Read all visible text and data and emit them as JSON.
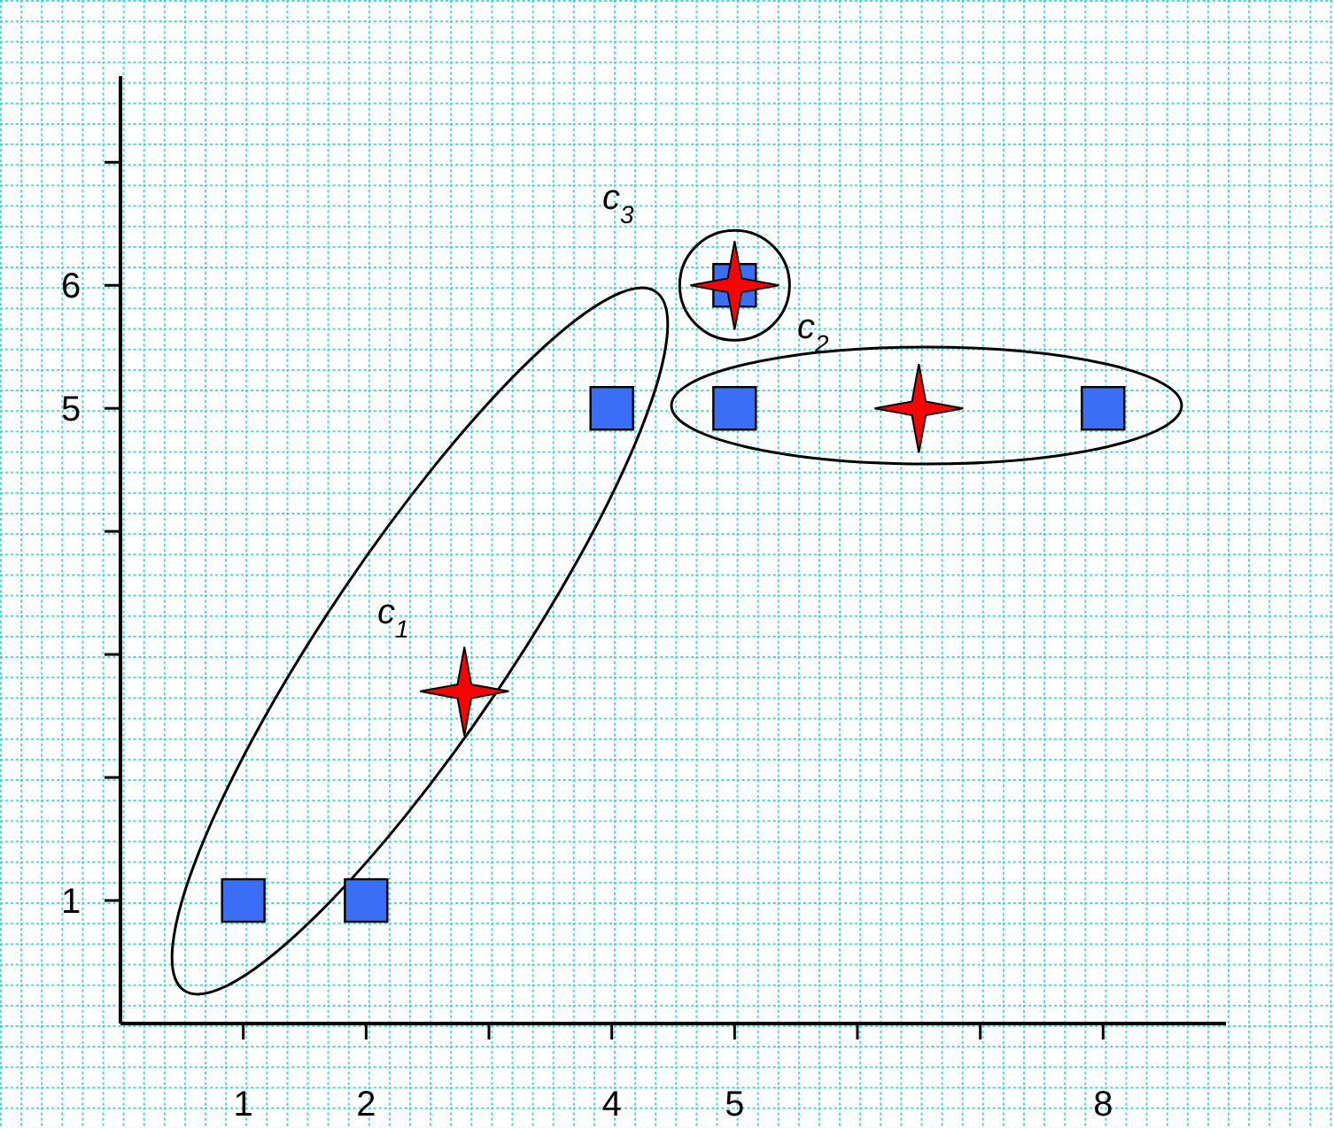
{
  "chart_data": {
    "type": "scatter",
    "xlim": [
      0,
      9
    ],
    "ylim": [
      0,
      7.7
    ],
    "xticks": [
      1,
      2,
      {
        "value": 3,
        "label": null
      },
      4,
      5,
      {
        "value": 6,
        "label": null
      },
      {
        "value": 7,
        "label": null
      },
      8
    ],
    "yticks": [
      1,
      {
        "value": 2,
        "label": null
      },
      {
        "value": 3,
        "label": null
      },
      {
        "value": 4,
        "label": null
      },
      5,
      6,
      {
        "value": 7,
        "label": null
      }
    ],
    "grid": false,
    "series": [
      {
        "marker": "square",
        "color": "#3b6ef6",
        "x": [
          1,
          2,
          4,
          5,
          8,
          5
        ],
        "values": [
          1,
          1,
          5,
          5,
          5,
          6
        ]
      },
      {
        "marker": "star",
        "color": "#ff0000",
        "x": [
          2.8,
          6.5,
          5
        ],
        "values": [
          2.7,
          5,
          6
        ]
      }
    ],
    "annotations": [
      "c$_{1}$",
      "c$_{2}$",
      "c$_{3}$"
    ]
  }
}
